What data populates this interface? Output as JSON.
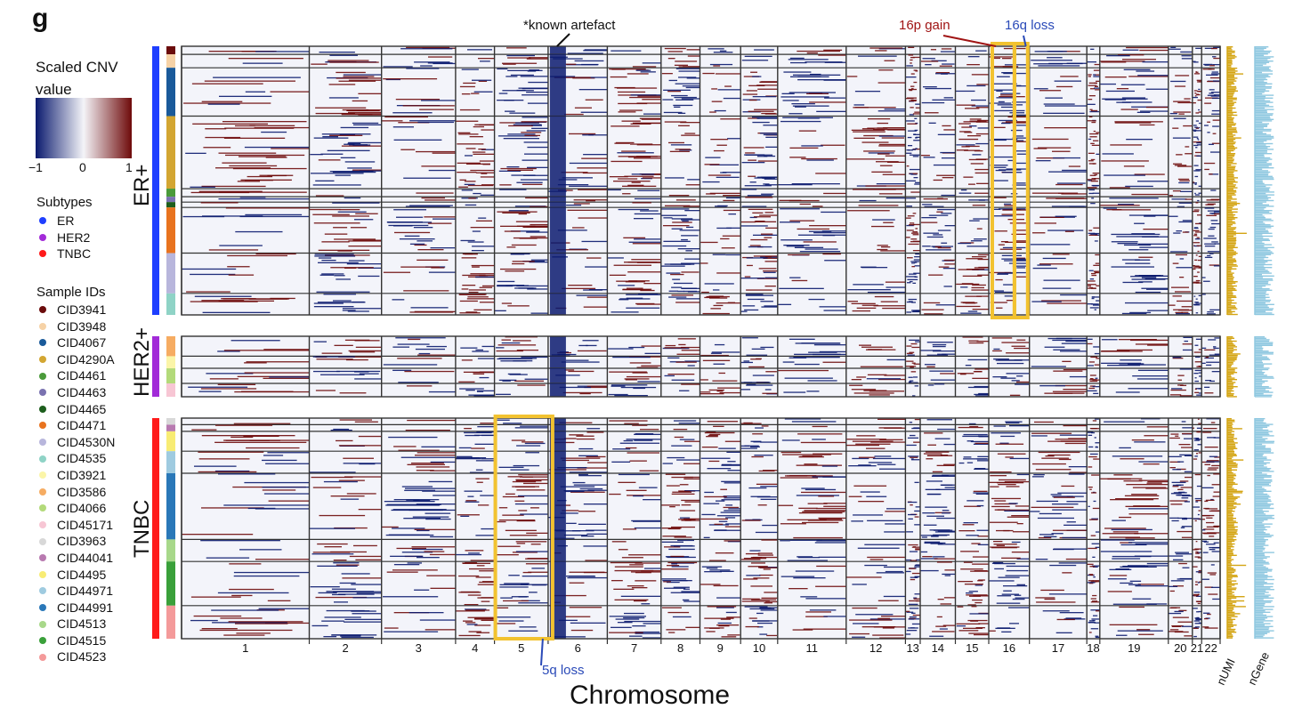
{
  "panel_letter": "g",
  "colorbar": {
    "title_line1": "Scaled CNV",
    "title_line2": "value",
    "ticks": [
      "−1",
      "0",
      "1"
    ],
    "low_color": "#0a1a6e",
    "mid_color": "#f4f4f8",
    "high_color": "#6e0a0a"
  },
  "subtypes": {
    "title": "Subtypes",
    "items": [
      {
        "label": "ER",
        "color": "#1f3fff"
      },
      {
        "label": "HER2",
        "color": "#a22bd8"
      },
      {
        "label": "TNBC",
        "color": "#ff1a1a"
      }
    ]
  },
  "samples": {
    "title": "Sample IDs",
    "items": [
      {
        "label": "CID3941",
        "color": "#6b0c0c"
      },
      {
        "label": "CID3948",
        "color": "#f6d2a6"
      },
      {
        "label": "CID4067",
        "color": "#1a5a9a"
      },
      {
        "label": "CID4290A",
        "color": "#d3a632"
      },
      {
        "label": "CID4461",
        "color": "#4a9a3a"
      },
      {
        "label": "CID4463",
        "color": "#7a72b0"
      },
      {
        "label": "CID4465",
        "color": "#1d5e1d"
      },
      {
        "label": "CID4471",
        "color": "#e8731f"
      },
      {
        "label": "CID4530N",
        "color": "#b8b6dc"
      },
      {
        "label": "CID4535",
        "color": "#8fd3c6"
      },
      {
        "label": "CID3921",
        "color": "#fbf5a8"
      },
      {
        "label": "CID3586",
        "color": "#f6ac62"
      },
      {
        "label": "CID4066",
        "color": "#b3da7a"
      },
      {
        "label": "CID45171",
        "color": "#f7c6d4"
      },
      {
        "label": "CID3963",
        "color": "#d8d8d8"
      },
      {
        "label": "CID44041",
        "color": "#b87ab0"
      },
      {
        "label": "CID4495",
        "color": "#f8ec74"
      },
      {
        "label": "CID44971",
        "color": "#9fcbe0"
      },
      {
        "label": "CID44991",
        "color": "#2a78b8"
      },
      {
        "label": "CID4513",
        "color": "#a8d88a"
      },
      {
        "label": "CID4515",
        "color": "#3aa03a"
      },
      {
        "label": "CID4523",
        "color": "#f49a9a"
      }
    ]
  },
  "chart_data": {
    "type": "heatmap",
    "xlabel": "Chromosome",
    "chromosomes": [
      "1",
      "2",
      "3",
      "4",
      "5",
      "6",
      "7",
      "8",
      "9",
      "10",
      "11",
      "12",
      "13",
      "14",
      "15",
      "16",
      "17",
      "18",
      "19",
      "20",
      "21",
      "22"
    ],
    "groups": [
      {
        "label": "ER+",
        "subtype": "ER",
        "samples": [
          "CID3941",
          "CID3948",
          "CID4067",
          "CID4290A",
          "CID4461",
          "CID4463",
          "CID4465",
          "CID4471",
          "CID4530N",
          "CID4535"
        ]
      },
      {
        "label": "HER2+",
        "subtype": "HER2",
        "samples": [
          "CID3586",
          "CID3921",
          "CID4066",
          "CID45171"
        ]
      },
      {
        "label": "TNBC",
        "subtype": "TNBC",
        "samples": [
          "CID3963",
          "CID44041",
          "CID4495",
          "CID44971",
          "CID44991",
          "CID4513",
          "CID4515",
          "CID4523"
        ]
      }
    ],
    "side_tracks": [
      "nUMI",
      "nGene"
    ],
    "side_track_colors": {
      "nUMI": "#d4a514",
      "nGene": "#8fc8e0"
    },
    "annotations": [
      {
        "text": "*known artefact",
        "color": "#111111"
      },
      {
        "text": "16p gain",
        "color": "#a01414"
      },
      {
        "text": "16q loss",
        "color": "#2a4ab8"
      },
      {
        "text": "5q loss",
        "color": "#2a4ab8"
      }
    ],
    "highlight_color": "#f2c230"
  }
}
